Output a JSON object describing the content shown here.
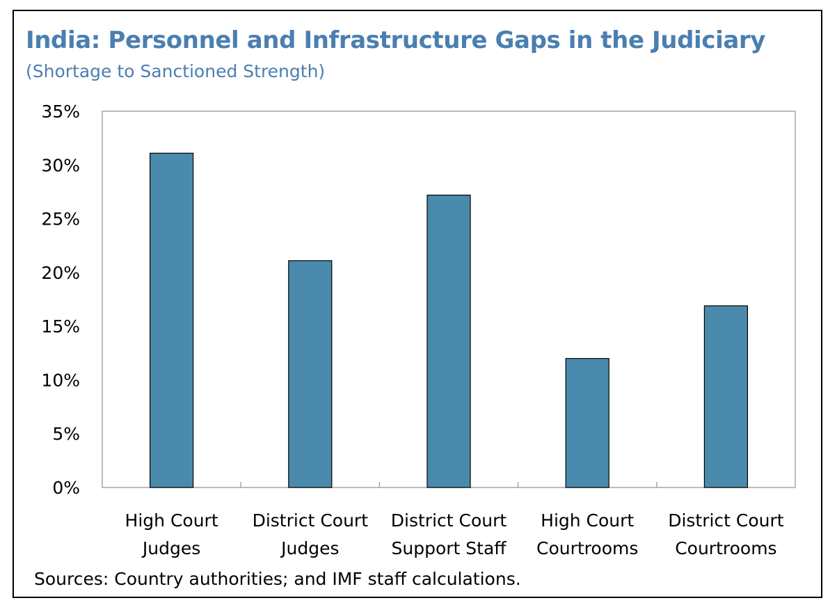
{
  "chart_data": {
    "type": "bar",
    "title": "India: Personnel and Infrastructure Gaps in the Judiciary",
    "subtitle": "(Shortage to Sanctioned Strength)",
    "categories": [
      [
        "High Court",
        "Judges"
      ],
      [
        "District Court",
        "Judges"
      ],
      [
        "District Court",
        "Support Staff"
      ],
      [
        "High Court",
        "Courtrooms"
      ],
      [
        "District Court",
        "Courtrooms"
      ]
    ],
    "values": [
      31.1,
      21.1,
      27.2,
      12.0,
      16.9
    ],
    "ylim": [
      0,
      35
    ],
    "yticks": [
      0,
      5,
      10,
      15,
      20,
      25,
      30,
      35
    ],
    "ytick_labels": [
      "0%",
      "5%",
      "10%",
      "15%",
      "20%",
      "25%",
      "30%",
      "35%"
    ],
    "xlabel": "",
    "ylabel": "",
    "grid": false,
    "legend": "none",
    "bar_color": "#4a8bad"
  },
  "source_note": "Sources: Country authorities; and IMF staff calculations.",
  "colors": {
    "title": "#4a7fb0",
    "bar": "#4a8bad"
  }
}
